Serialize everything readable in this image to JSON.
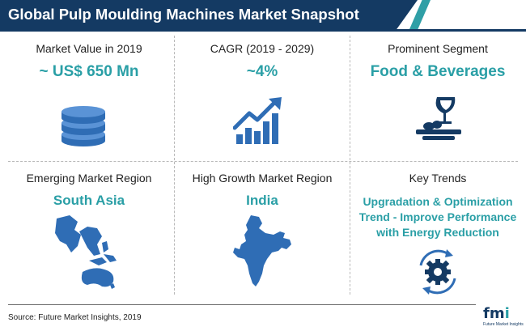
{
  "title": "Global Pulp Moulding Machines Market Snapshot",
  "cells": {
    "market_value": {
      "label": "Market Value in 2019",
      "value": "~ US$ 650 Mn",
      "icon": "database-stack-icon"
    },
    "cagr": {
      "label": "CAGR (2019 - 2029)",
      "value": "~4%",
      "icon": "growth-bar-chart-icon"
    },
    "prominent_segment": {
      "label": "Prominent Segment",
      "value": "Food & Beverages",
      "icon": "wine-glass-food-plate-icon"
    },
    "emerging_region": {
      "label": "Emerging Market Region",
      "value": "South Asia",
      "icon": "south-asia-map-icon"
    },
    "high_growth_region": {
      "label": "High Growth Market Region",
      "value": "India",
      "icon": "india-map-icon"
    },
    "key_trends": {
      "label": "Key Trends",
      "lines": [
        "Upgradation & Optimization",
        "Trend - Improve Performance",
        "with Energy Reduction"
      ],
      "icon": "gear-cycle-icon"
    }
  },
  "source": "Source: Future Market Insights, 2019",
  "logo": {
    "mark_f": "f",
    "mark_m": "m",
    "mark_i": "i",
    "subtitle": "Future Market Insights"
  },
  "colors": {
    "navy": "#143a63",
    "teal": "#2a9fa6",
    "blue": "#2f6db5"
  }
}
